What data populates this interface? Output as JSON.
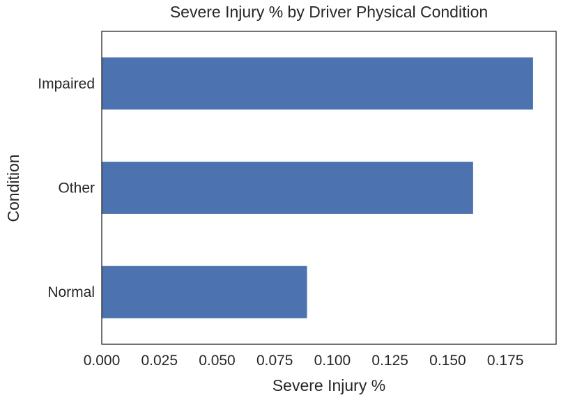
{
  "chart_data": {
    "type": "bar",
    "orientation": "horizontal",
    "title": "Severe Injury % by Driver Physical Condition",
    "xlabel": "Severe Injury %",
    "ylabel": "Condition",
    "categories": [
      "Normal",
      "Other",
      "Impaired"
    ],
    "values": [
      0.089,
      0.161,
      0.187
    ],
    "xlim": [
      0.0,
      0.197
    ],
    "xticks": [
      "0.000",
      "0.025",
      "0.050",
      "0.075",
      "0.100",
      "0.125",
      "0.150",
      "0.175"
    ],
    "grid": false,
    "legend": "none",
    "bar_color": "#4c72b0",
    "text_color": "#262626",
    "axes_color": "#262626"
  }
}
